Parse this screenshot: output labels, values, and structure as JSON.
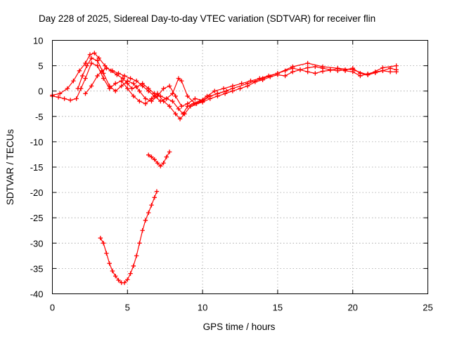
{
  "chart_data": {
    "type": "scatter",
    "title": "Day 228 of 2025, Sidereal Day-to-day VTEC variation (SDTVAR) for receiver flin",
    "xlabel": "GPS time / hours",
    "ylabel": "SDTVAR / TECUs",
    "xlim": [
      0,
      25
    ],
    "ylim": [
      -40,
      10
    ],
    "xticks": [
      0,
      5,
      10,
      15,
      20,
      25
    ],
    "yticks": [
      -40,
      -35,
      -30,
      -25,
      -20,
      -15,
      -10,
      -5,
      0,
      5,
      10
    ],
    "grid": true,
    "marker": "+",
    "color": "#ff0000",
    "series": [
      {
        "name": "track-a",
        "x": [
          0.0,
          0.5,
          1.0,
          1.4,
          1.8,
          2.2,
          2.5,
          2.8,
          3.1,
          3.5,
          3.9,
          4.3,
          4.7,
          5.0,
          5.3,
          5.6,
          6.0,
          6.4,
          6.8,
          7.2,
          7.6,
          8.0,
          8.4,
          8.7,
          9.0,
          9.4,
          9.8,
          10.3,
          10.8,
          11.4,
          12.0,
          12.6,
          13.2,
          13.8,
          14.4,
          15.0,
          15.5,
          16.0,
          16.5,
          17.0,
          17.5,
          18.0,
          18.5,
          19.0,
          19.5,
          20.0,
          20.5,
          21.0,
          21.5,
          22.0,
          22.5,
          22.9
        ],
        "y": [
          -0.8,
          -0.5,
          0.5,
          2.0,
          4.0,
          5.5,
          7.2,
          7.5,
          6.5,
          5.0,
          4.0,
          3.2,
          2.5,
          1.5,
          0.5,
          0.8,
          1.5,
          0.5,
          -0.5,
          -1.0,
          -1.5,
          -2.0,
          -3.5,
          -4.5,
          -3.0,
          -2.5,
          -2.0,
          -1.0,
          0.0,
          0.5,
          1.0,
          1.5,
          2.0,
          2.5,
          3.0,
          3.5,
          4.0,
          4.5,
          4.2,
          4.6,
          4.8,
          4.5,
          4.2,
          4.0,
          4.2,
          4.5,
          3.5,
          3.2,
          3.6,
          4.0,
          4.5,
          4.2
        ]
      },
      {
        "name": "track-b",
        "x": [
          0.0,
          0.4,
          0.8,
          1.2,
          1.6,
          1.9,
          2.2,
          2.6,
          3.0,
          3.4,
          3.8,
          4.2,
          4.6,
          5.0,
          5.4,
          5.8,
          6.2,
          6.6,
          7.0,
          7.4,
          7.8,
          8.2,
          8.5,
          8.8,
          9.2,
          9.6,
          10.0,
          10.5,
          11.0,
          11.5,
          12.0,
          12.5,
          13.0,
          13.5,
          14.0,
          14.5,
          15.0,
          15.5,
          16.0,
          16.5,
          17.0,
          17.5,
          18.0,
          18.5,
          19.0,
          19.5,
          20.0,
          20.5,
          21.0,
          21.5,
          22.0,
          22.5,
          22.9
        ],
        "y": [
          -1.0,
          -1.2,
          -1.5,
          -1.8,
          -1.5,
          0.5,
          2.5,
          5.5,
          5.0,
          2.5,
          0.5,
          1.5,
          2.0,
          0.5,
          -1.0,
          -2.0,
          -2.5,
          -1.5,
          -0.5,
          -2.0,
          -3.0,
          -4.5,
          -5.5,
          -4.5,
          -3.0,
          -2.5,
          -2.2,
          -1.5,
          -1.0,
          -0.5,
          0.0,
          0.5,
          1.0,
          1.8,
          2.2,
          2.8,
          3.2,
          3.0,
          3.8,
          4.2,
          3.8,
          3.5,
          3.9,
          4.1,
          4.4,
          4.0,
          3.8,
          3.0,
          3.4,
          3.8,
          4.0,
          3.8,
          3.8
        ]
      },
      {
        "name": "track-c",
        "x": [
          2.2,
          2.6,
          3.0,
          3.3,
          3.6,
          4.0,
          4.4,
          4.8,
          5.2,
          5.6,
          6.0,
          6.4,
          6.8,
          7.2,
          7.6,
          8.0,
          8.4,
          8.6,
          9.0,
          9.5,
          10.0,
          10.5,
          11.0,
          12.0,
          13.0,
          14.0,
          15.0,
          16.0,
          17.0,
          18.0,
          19.0,
          20.0,
          21.0,
          22.0,
          22.9
        ],
        "y": [
          -0.5,
          1.0,
          3.0,
          4.0,
          4.5,
          4.0,
          3.5,
          3.0,
          2.5,
          2.0,
          1.0,
          0.0,
          -1.0,
          -2.0,
          -1.5,
          -0.5,
          2.5,
          2.0,
          -1.0,
          -2.5,
          -2.0,
          -1.0,
          -0.5,
          0.5,
          1.5,
          2.5,
          3.5,
          4.8,
          5.5,
          4.8,
          4.5,
          4.2,
          3.2,
          4.6,
          5.0
        ]
      },
      {
        "name": "track-d",
        "x": [
          1.7,
          2.0,
          2.3,
          2.6,
          3.0,
          3.4,
          3.8,
          4.2,
          4.6,
          5.0,
          5.4,
          5.8,
          6.2,
          6.6,
          7.0,
          7.4,
          7.8,
          8.2,
          8.6,
          9.0,
          9.5,
          10.0,
          10.5,
          11.0,
          11.6
        ],
        "y": [
          0.5,
          3.0,
          5.0,
          6.5,
          6.0,
          3.5,
          1.0,
          0.0,
          1.0,
          2.0,
          1.5,
          0.0,
          -1.5,
          -2.0,
          -1.0,
          0.5,
          1.0,
          -1.0,
          -3.0,
          -2.5,
          -1.5,
          -1.8,
          -1.0,
          -0.5,
          0.0
        ]
      },
      {
        "name": "dip-arc",
        "x": [
          3.2,
          3.4,
          3.6,
          3.8,
          4.0,
          4.2,
          4.4,
          4.6,
          4.8,
          5.0,
          5.2,
          5.4,
          5.6,
          5.8,
          6.0,
          6.2,
          6.4,
          6.6,
          6.8,
          6.95
        ],
        "y": [
          -29.0,
          -30.0,
          -32.0,
          -34.0,
          -35.5,
          -36.5,
          -37.3,
          -37.8,
          -37.8,
          -37.2,
          -36.0,
          -34.5,
          -32.5,
          -30.0,
          -27.5,
          -25.5,
          -24.0,
          -22.5,
          -21.0,
          -19.8
        ]
      },
      {
        "name": "small-arc",
        "x": [
          6.4,
          6.6,
          6.8,
          7.0,
          7.2,
          7.4,
          7.6,
          7.8
        ],
        "y": [
          -12.6,
          -13.0,
          -13.5,
          -14.2,
          -14.8,
          -14.2,
          -13.0,
          -12.0
        ]
      }
    ]
  }
}
